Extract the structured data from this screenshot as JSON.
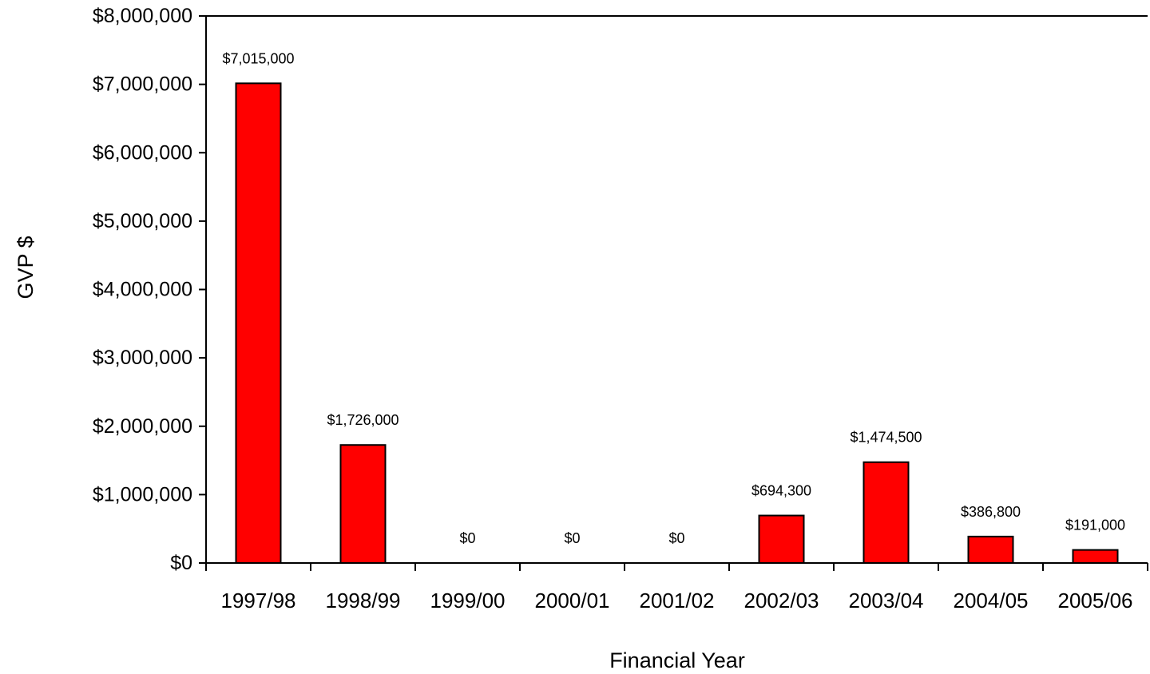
{
  "chart_data": {
    "type": "bar",
    "xlabel": "Financial Year",
    "ylabel": "GVP $",
    "categories": [
      "1997/98",
      "1998/99",
      "1999/00",
      "2000/01",
      "2001/02",
      "2002/03",
      "2003/04",
      "2004/05",
      "2005/06"
    ],
    "values": [
      7015000,
      1726000,
      0,
      0,
      0,
      694300,
      1474500,
      386800,
      191000
    ],
    "data_labels": [
      "$7,015,000",
      "$1,726,000",
      "$0",
      "$0",
      "$0",
      "$694,300",
      "$1,474,500",
      "$386,800",
      "$191,000"
    ],
    "ylim": [
      0,
      8000000
    ],
    "yticks": [
      0,
      1000000,
      2000000,
      3000000,
      4000000,
      5000000,
      6000000,
      7000000,
      8000000
    ],
    "ytick_labels": [
      "$0",
      "$1,000,000",
      "$2,000,000",
      "$3,000,000",
      "$4,000,000",
      "$5,000,000",
      "$6,000,000",
      "$7,000,000",
      "$8,000,000"
    ],
    "grid": false,
    "show_legend": false,
    "colors": {
      "bar_fill": "#FF0000",
      "bar_edge": "#000000",
      "axis": "#000000",
      "text": "#000000"
    }
  }
}
